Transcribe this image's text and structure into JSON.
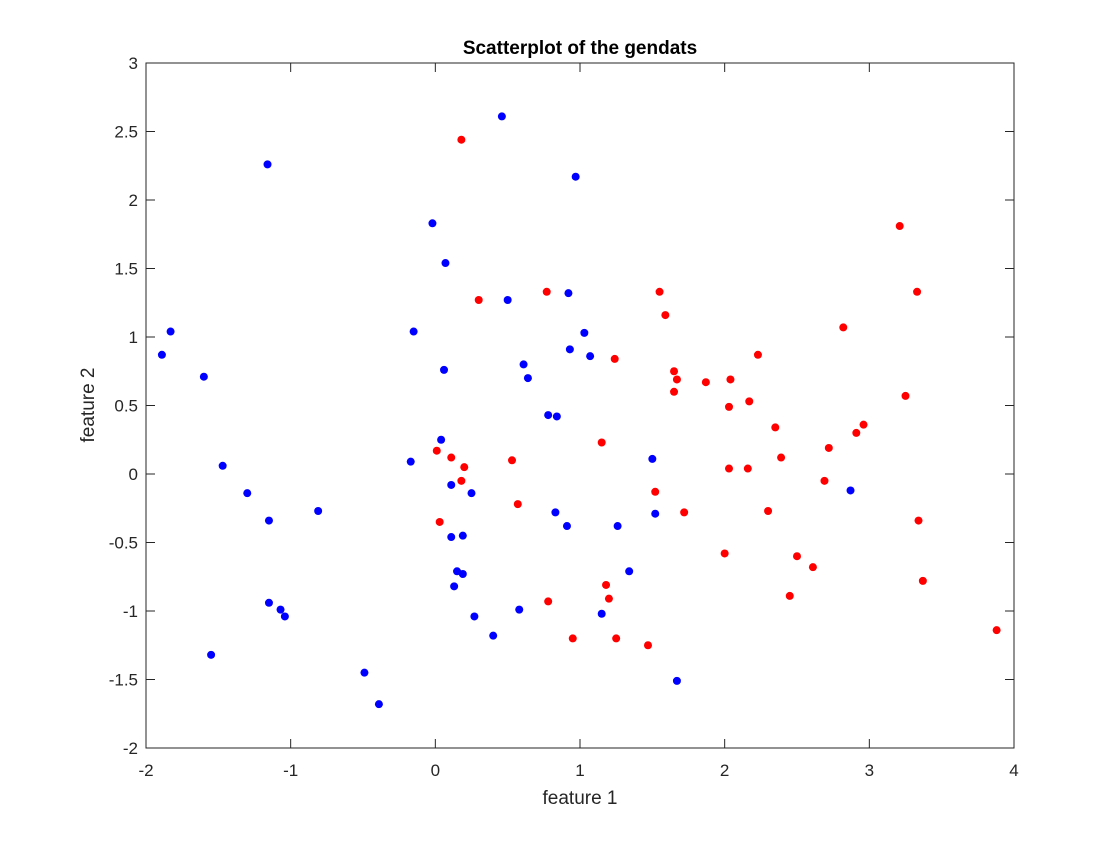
{
  "chart_data": {
    "type": "scatter",
    "title": "Scatterplot of the gendats",
    "xlabel": "feature 1",
    "ylabel": "feature 2",
    "xlim": [
      -2,
      4
    ],
    "ylim": [
      -2,
      3
    ],
    "xticks": [
      -2,
      -1,
      0,
      1,
      2,
      3,
      4
    ],
    "yticks": [
      -2,
      -1.5,
      -1,
      -0.5,
      0,
      0.5,
      1,
      1.5,
      2,
      2.5,
      3
    ],
    "xtick_labels": [
      "-2",
      "-1",
      "0",
      "1",
      "2",
      "3",
      "4"
    ],
    "ytick_labels": [
      "-2",
      "-1.5",
      "-1",
      "-0.5",
      "0",
      "0.5",
      "1",
      "1.5",
      "2",
      "2.5",
      "3"
    ],
    "grid": false,
    "series": [
      {
        "color": "#0000ff",
        "points": [
          [
            0.46,
            2.61
          ],
          [
            -1.16,
            2.26
          ],
          [
            0.97,
            2.17
          ],
          [
            -0.02,
            1.83
          ],
          [
            0.07,
            1.54
          ],
          [
            0.5,
            1.27
          ],
          [
            0.92,
            1.32
          ],
          [
            -1.83,
            1.04
          ],
          [
            -1.89,
            0.87
          ],
          [
            -0.15,
            1.04
          ],
          [
            1.03,
            1.03
          ],
          [
            1.07,
            0.86
          ],
          [
            0.93,
            0.91
          ],
          [
            0.61,
            0.8
          ],
          [
            0.64,
            0.7
          ],
          [
            0.06,
            0.76
          ],
          [
            -1.6,
            0.71
          ],
          [
            0.78,
            0.43
          ],
          [
            0.84,
            0.42
          ],
          [
            0.04,
            0.25
          ],
          [
            -1.47,
            0.06
          ],
          [
            -0.17,
            0.09
          ],
          [
            0.11,
            -0.08
          ],
          [
            0.25,
            -0.14
          ],
          [
            -1.3,
            -0.14
          ],
          [
            -0.81,
            -0.27
          ],
          [
            -1.15,
            -0.34
          ],
          [
            0.83,
            -0.28
          ],
          [
            0.91,
            -0.38
          ],
          [
            1.26,
            -0.38
          ],
          [
            0.11,
            -0.46
          ],
          [
            0.19,
            -0.45
          ],
          [
            0.15,
            -0.71
          ],
          [
            0.19,
            -0.73
          ],
          [
            0.13,
            -0.82
          ],
          [
            1.34,
            -0.71
          ],
          [
            1.5,
            0.11
          ],
          [
            1.52,
            -0.29
          ],
          [
            2.87,
            -0.12
          ],
          [
            -1.15,
            -0.94
          ],
          [
            -1.07,
            -0.99
          ],
          [
            -1.04,
            -1.04
          ],
          [
            0.27,
            -1.04
          ],
          [
            0.58,
            -0.99
          ],
          [
            1.15,
            -1.02
          ],
          [
            0.4,
            -1.18
          ],
          [
            -1.55,
            -1.32
          ],
          [
            -0.49,
            -1.45
          ],
          [
            -0.39,
            -1.68
          ],
          [
            1.67,
            -1.51
          ]
        ]
      },
      {
        "color": "#ff0000",
        "points": [
          [
            0.18,
            2.44
          ],
          [
            3.21,
            1.81
          ],
          [
            0.3,
            1.27
          ],
          [
            0.77,
            1.33
          ],
          [
            1.55,
            1.33
          ],
          [
            1.59,
            1.16
          ],
          [
            3.33,
            1.33
          ],
          [
            2.82,
            1.07
          ],
          [
            1.24,
            0.84
          ],
          [
            2.23,
            0.87
          ],
          [
            1.65,
            0.75
          ],
          [
            1.67,
            0.69
          ],
          [
            1.87,
            0.67
          ],
          [
            2.04,
            0.69
          ],
          [
            1.65,
            0.6
          ],
          [
            3.25,
            0.57
          ],
          [
            2.03,
            0.49
          ],
          [
            2.17,
            0.53
          ],
          [
            2.35,
            0.34
          ],
          [
            2.96,
            0.36
          ],
          [
            2.91,
            0.3
          ],
          [
            2.72,
            0.19
          ],
          [
            1.15,
            0.23
          ],
          [
            0.01,
            0.17
          ],
          [
            0.11,
            0.12
          ],
          [
            0.2,
            0.05
          ],
          [
            0.53,
            0.1
          ],
          [
            2.39,
            0.12
          ],
          [
            2.03,
            0.04
          ],
          [
            2.16,
            0.04
          ],
          [
            0.18,
            -0.05
          ],
          [
            2.69,
            -0.05
          ],
          [
            1.52,
            -0.13
          ],
          [
            0.57,
            -0.22
          ],
          [
            1.72,
            -0.28
          ],
          [
            2.3,
            -0.27
          ],
          [
            0.03,
            -0.35
          ],
          [
            3.34,
            -0.34
          ],
          [
            2.0,
            -0.58
          ],
          [
            2.5,
            -0.6
          ],
          [
            2.61,
            -0.68
          ],
          [
            1.18,
            -0.81
          ],
          [
            3.37,
            -0.78
          ],
          [
            2.45,
            -0.89
          ],
          [
            1.2,
            -0.91
          ],
          [
            0.78,
            -0.93
          ],
          [
            0.95,
            -1.2
          ],
          [
            1.25,
            -1.2
          ],
          [
            1.47,
            -1.25
          ],
          [
            3.88,
            -1.14
          ]
        ]
      }
    ]
  }
}
